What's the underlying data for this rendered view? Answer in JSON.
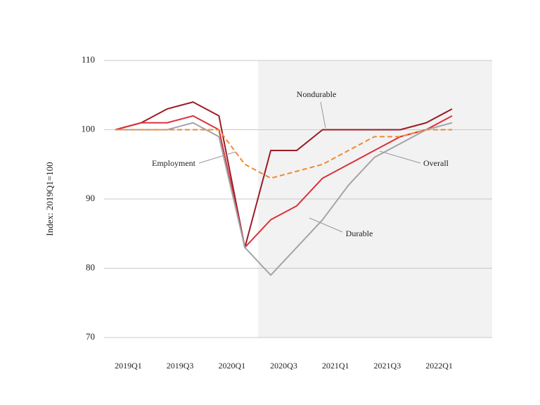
{
  "chart_data": {
    "type": "line",
    "y_label": "Index: 2019Q1=100",
    "categories": [
      "2019Q1",
      null,
      "2019Q3",
      null,
      "2020Q1",
      null,
      "2020Q3",
      null,
      "2021Q1",
      null,
      "2021Q3",
      null,
      "2022Q1",
      null
    ],
    "ylim": [
      70,
      110
    ],
    "yticks": [
      70,
      80,
      90,
      100,
      110
    ],
    "grid": true,
    "series": [
      {
        "name": "Nondurable",
        "color": "#9b1c24",
        "dash": false,
        "values": [
          100,
          101,
          103,
          104,
          102,
          83,
          97,
          97,
          100,
          100,
          100,
          100,
          101,
          103
        ]
      },
      {
        "name": "Overall",
        "color": "#d9313a",
        "dash": false,
        "values": [
          100,
          101,
          101,
          102,
          100,
          83,
          87,
          89,
          93,
          95,
          97,
          99,
          100,
          102
        ]
      },
      {
        "name": "Durable",
        "color": "#a3a3aa",
        "dash": false,
        "values": [
          100,
          100,
          100,
          101,
          99,
          83,
          79,
          83,
          87,
          92,
          96,
          98,
          100,
          101
        ]
      },
      {
        "name": "Employment",
        "color": "#f08a30",
        "dash": true,
        "values": [
          100,
          100,
          100,
          100,
          100,
          95,
          93,
          94,
          95,
          97,
          99,
          99,
          100,
          100
        ]
      }
    ]
  }
}
